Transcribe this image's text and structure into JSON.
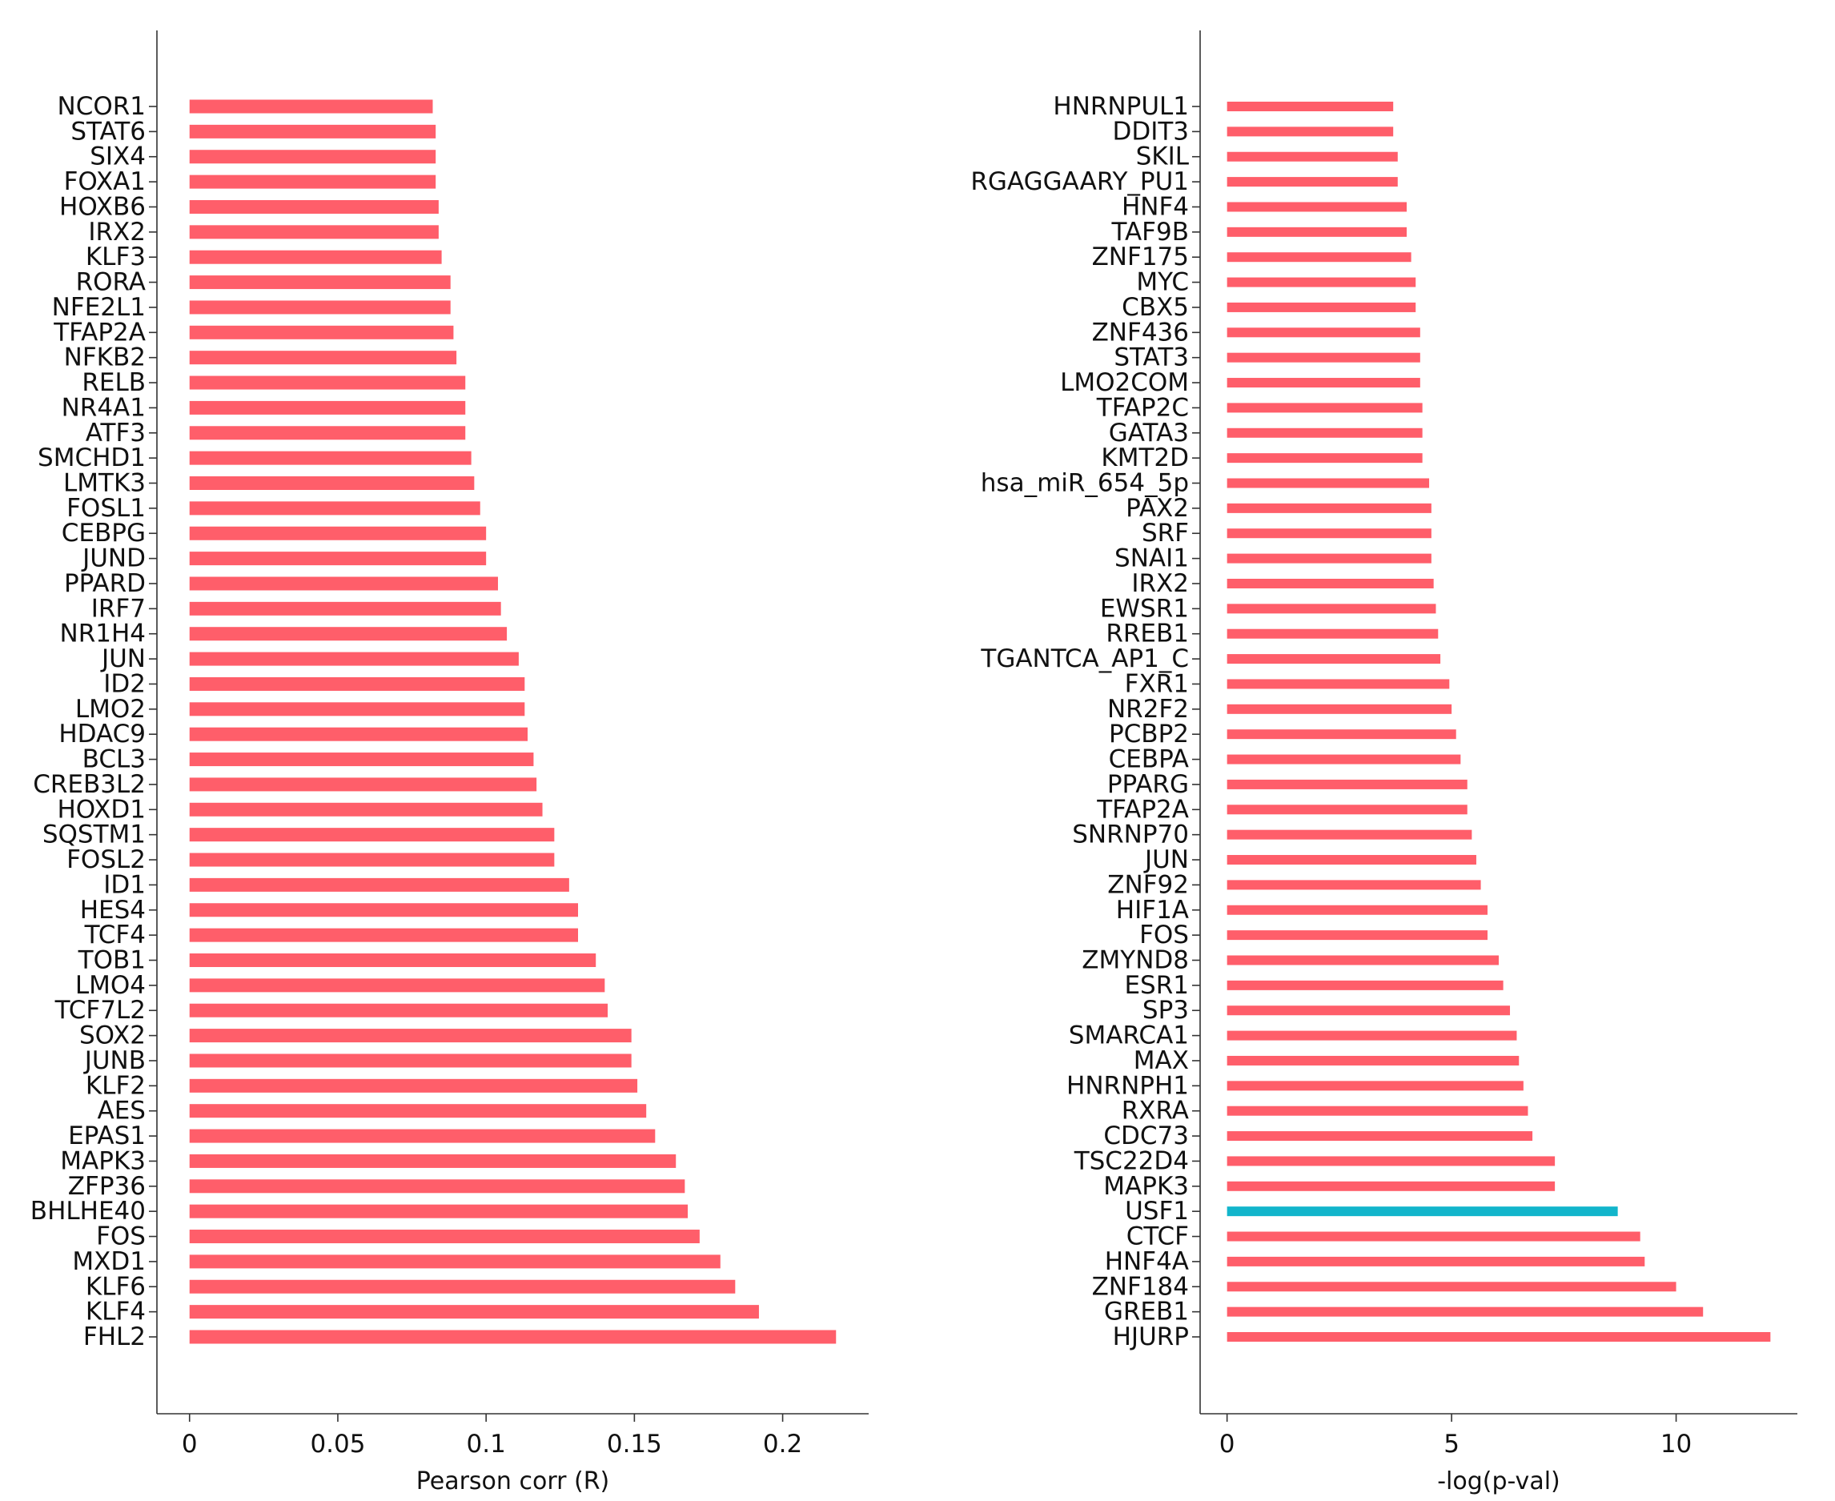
{
  "chart_data": [
    {
      "type": "bar",
      "orientation": "horizontal",
      "xlabel": "Pearson corr (R)",
      "xlim": [
        -0.011,
        0.229
      ],
      "xticks": [
        0,
        0.05,
        0.1,
        0.15,
        0.2
      ],
      "xtick_labels": [
        "0",
        "0.05",
        "0.1",
        "0.15",
        "0.2"
      ],
      "bar_color": "#FF5E6A",
      "categories": [
        "NCOR1",
        "STAT6",
        "SIX4",
        "FOXA1",
        "HOXB6",
        "IRX2",
        "KLF3",
        "RORA",
        "NFE2L1",
        "TFAP2A",
        "NFKB2",
        "RELB",
        "NR4A1",
        "ATF3",
        "SMCHD1",
        "LMTK3",
        "FOSL1",
        "CEBPG",
        "JUND",
        "PPARD",
        "IRF7",
        "NR1H4",
        "JUN",
        "ID2",
        "LMO2",
        "HDAC9",
        "BCL3",
        "CREB3L2",
        "HOXD1",
        "SQSTM1",
        "FOSL2",
        "ID1",
        "HES4",
        "TCF4",
        "TOB1",
        "LMO4",
        "TCF7L2",
        "SOX2",
        "JUNB",
        "KLF2",
        "AES",
        "EPAS1",
        "MAPK3",
        "ZFP36",
        "BHLHE40",
        "FOS",
        "MXD1",
        "KLF6",
        "KLF4",
        "FHL2"
      ],
      "values": [
        0.082,
        0.083,
        0.083,
        0.083,
        0.084,
        0.084,
        0.085,
        0.088,
        0.088,
        0.089,
        0.09,
        0.093,
        0.093,
        0.093,
        0.095,
        0.096,
        0.098,
        0.1,
        0.1,
        0.104,
        0.105,
        0.107,
        0.111,
        0.113,
        0.113,
        0.114,
        0.116,
        0.117,
        0.119,
        0.123,
        0.123,
        0.128,
        0.131,
        0.131,
        0.137,
        0.14,
        0.141,
        0.149,
        0.149,
        0.151,
        0.154,
        0.157,
        0.164,
        0.167,
        0.168,
        0.172,
        0.179,
        0.184,
        0.192,
        0.218
      ]
    },
    {
      "type": "bar",
      "orientation": "horizontal",
      "xlabel": "-log(p-val)",
      "xlim": [
        -0.6,
        12.7
      ],
      "xticks": [
        0,
        5,
        10
      ],
      "xtick_labels": [
        "0",
        "5",
        "10"
      ],
      "bar_color": "#FF5E6A",
      "highlight_color": "#12B5CB",
      "highlight_category": "USF1",
      "categories": [
        "HNRNPUL1",
        "DDIT3",
        "SKIL",
        "RGAGGAARY_PU1",
        "HNF4",
        "TAF9B",
        "ZNF175",
        "MYC",
        "CBX5",
        "ZNF436",
        "STAT3",
        "LMO2COM",
        "TFAP2C",
        "GATA3",
        "KMT2D",
        "hsa_miR_654_5p",
        "PAX2",
        "SRF",
        "SNAI1",
        "IRX2",
        "EWSR1",
        "RREB1",
        "TGANTCA_AP1_C",
        "FXR1",
        "NR2F2",
        "PCBP2",
        "CEBPA",
        "PPARG",
        "TFAP2A",
        "SNRNP70",
        "JUN",
        "ZNF92",
        "HIF1A",
        "FOS",
        "ZMYND8",
        "ESR1",
        "SP3",
        "SMARCA1",
        "MAX",
        "HNRNPH1",
        "RXRA",
        "CDC73",
        "TSC22D4",
        "MAPK3",
        "USF1",
        "CTCF",
        "HNF4A",
        "ZNF184",
        "GREB1",
        "HJURP"
      ],
      "values": [
        3.7,
        3.7,
        3.8,
        3.8,
        4.0,
        4.0,
        4.1,
        4.2,
        4.2,
        4.3,
        4.3,
        4.3,
        4.35,
        4.35,
        4.35,
        4.5,
        4.55,
        4.55,
        4.55,
        4.6,
        4.65,
        4.7,
        4.75,
        4.95,
        5.0,
        5.1,
        5.2,
        5.35,
        5.35,
        5.45,
        5.55,
        5.65,
        5.8,
        5.8,
        6.05,
        6.15,
        6.3,
        6.45,
        6.5,
        6.6,
        6.7,
        6.8,
        7.3,
        7.3,
        8.7,
        9.2,
        9.3,
        10.0,
        10.6,
        12.1
      ]
    }
  ]
}
